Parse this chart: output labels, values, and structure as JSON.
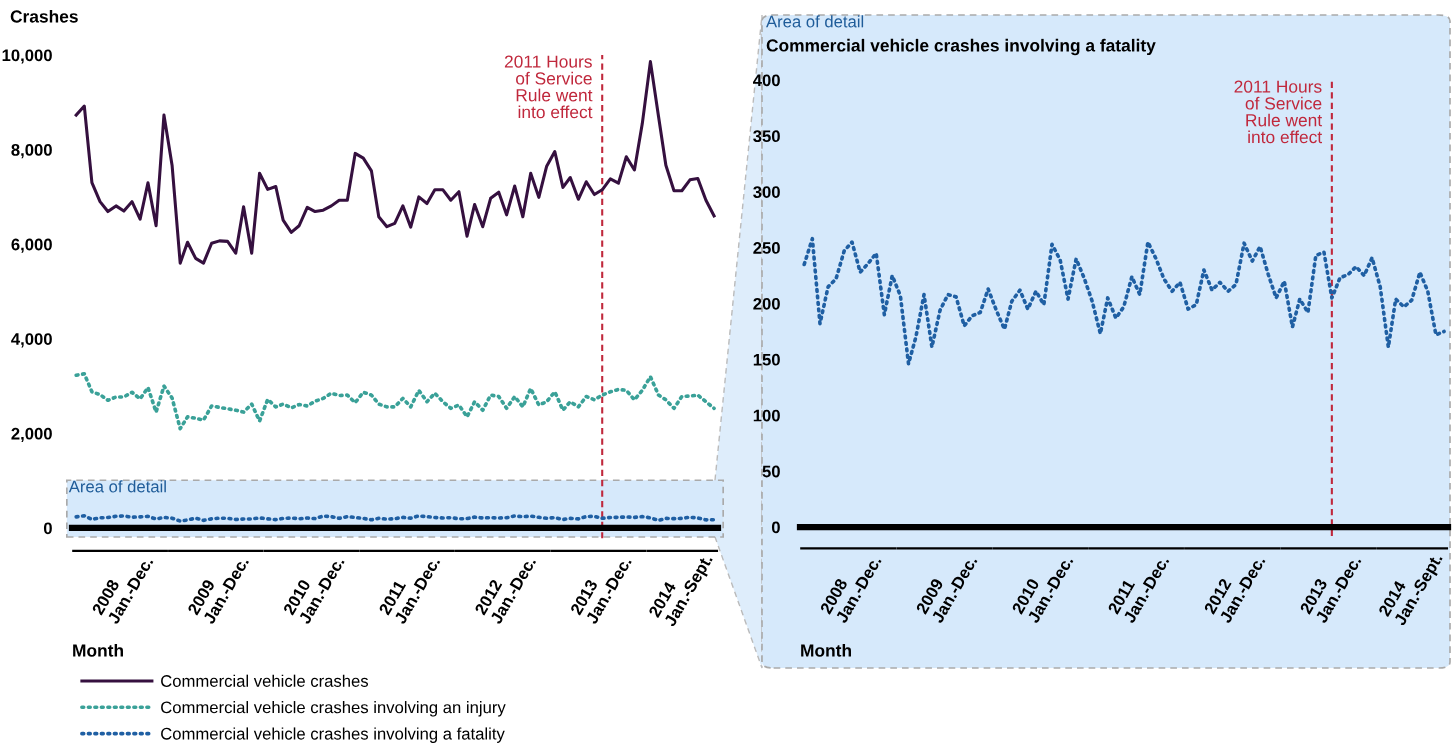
{
  "chart_data": [
    {
      "type": "line",
      "ylabel": "Crashes",
      "xlabel": "Month",
      "x": [
        "2008-01",
        "2008-02",
        "2008-03",
        "2008-04",
        "2008-05",
        "2008-06",
        "2008-07",
        "2008-08",
        "2008-09",
        "2008-10",
        "2008-11",
        "2008-12",
        "2009-01",
        "2009-02",
        "2009-03",
        "2009-04",
        "2009-05",
        "2009-06",
        "2009-07",
        "2009-08",
        "2009-09",
        "2009-10",
        "2009-11",
        "2009-12",
        "2010-01",
        "2010-02",
        "2010-03",
        "2010-04",
        "2010-05",
        "2010-06",
        "2010-07",
        "2010-08",
        "2010-09",
        "2010-10",
        "2010-11",
        "2010-12",
        "2011-01",
        "2011-02",
        "2011-03",
        "2011-04",
        "2011-05",
        "2011-06",
        "2011-07",
        "2011-08",
        "2011-09",
        "2011-10",
        "2011-11",
        "2011-12",
        "2012-01",
        "2012-02",
        "2012-03",
        "2012-04",
        "2012-05",
        "2012-06",
        "2012-07",
        "2012-08",
        "2012-09",
        "2012-10",
        "2012-11",
        "2012-12",
        "2013-01",
        "2013-02",
        "2013-03",
        "2013-04",
        "2013-05",
        "2013-06",
        "2013-07",
        "2013-08",
        "2013-09",
        "2013-10",
        "2013-11",
        "2013-12",
        "2014-01",
        "2014-02",
        "2014-03",
        "2014-04",
        "2014-05",
        "2014-06",
        "2014-07",
        "2014-08",
        "2014-09"
      ],
      "series": [
        {
          "name": "Commercial vehicle crashes",
          "color": "#35103f",
          "line_style": "solid",
          "values": [
            8730,
            8920,
            7300,
            6900,
            6690,
            6810,
            6700,
            6900,
            6530,
            7300,
            6390,
            8730,
            7670,
            5600,
            6040,
            5700,
            5600,
            6020,
            6070,
            6060,
            5810,
            6790,
            5810,
            7500,
            7160,
            7220,
            6510,
            6250,
            6390,
            6780,
            6690,
            6720,
            6810,
            6930,
            6930,
            7920,
            7820,
            7550,
            6580,
            6370,
            6440,
            6810,
            6360,
            7000,
            6860,
            7150,
            7150,
            6930,
            7110,
            6170,
            6840,
            6370,
            6970,
            7100,
            6620,
            7230,
            6580,
            7500,
            6990,
            7650,
            7960,
            7200,
            7410,
            6950,
            7320,
            7050,
            7150,
            7380,
            7290,
            7850,
            7570,
            8550,
            9860,
            8700,
            7670,
            7130,
            7130,
            7360,
            7390,
            6930,
            6600
          ]
        },
        {
          "name": "Commercial vehicle crashes involving an injury",
          "color": "#3aa198",
          "line_style": "dotted",
          "values": [
            3230,
            3260,
            2880,
            2820,
            2700,
            2770,
            2770,
            2870,
            2730,
            2970,
            2450,
            3000,
            2750,
            2100,
            2350,
            2320,
            2280,
            2580,
            2550,
            2520,
            2490,
            2450,
            2620,
            2260,
            2720,
            2560,
            2620,
            2540,
            2610,
            2580,
            2680,
            2740,
            2850,
            2800,
            2810,
            2650,
            2870,
            2810,
            2620,
            2560,
            2560,
            2740,
            2560,
            2910,
            2670,
            2850,
            2670,
            2530,
            2600,
            2350,
            2670,
            2490,
            2810,
            2780,
            2530,
            2780,
            2560,
            2950,
            2600,
            2670,
            2880,
            2490,
            2670,
            2560,
            2780,
            2710,
            2810,
            2880,
            2930,
            2910,
            2710,
            2910,
            3200,
            2810,
            2710,
            2530,
            2780,
            2790,
            2810,
            2670,
            2530
          ]
        },
        {
          "name": "Commercial vehicle crashes involving a fatality",
          "color": "#1f5fa3",
          "line_style": "dotted",
          "values": [
            235,
            258,
            182,
            215,
            222,
            247,
            255,
            228,
            236,
            245,
            190,
            225,
            207,
            146,
            170,
            208,
            161,
            194,
            208,
            206,
            180,
            189,
            192,
            213,
            194,
            177,
            202,
            212,
            195,
            211,
            199,
            253,
            239,
            204,
            240,
            223,
            202,
            173,
            205,
            187,
            197,
            224,
            208,
            255,
            240,
            222,
            211,
            219,
            195,
            199,
            230,
            212,
            219,
            211,
            217,
            254,
            238,
            251,
            226,
            205,
            220,
            179,
            204,
            192,
            243,
            246,
            205,
            223,
            226,
            233,
            225,
            241,
            215,
            161,
            204,
            197,
            203,
            228,
            211,
            172,
            175
          ]
        }
      ],
      "xlim": [
        "2007-12-16",
        "2014-09-16"
      ],
      "xticks": [
        {
          "value": "2008-07",
          "label": "2008\nJan.-Dec."
        },
        {
          "value": "2009-07",
          "label": "2009\nJan.-Dec."
        },
        {
          "value": "2010-07",
          "label": "2010\nJan.-Dec."
        },
        {
          "value": "2011-07",
          "label": "2011\nJan.-Dec."
        },
        {
          "value": "2012-07",
          "label": "2012\nJan.-Dec."
        },
        {
          "value": "2013-07",
          "label": "2013\nJan.-Dec."
        },
        {
          "value": "2014-05",
          "label": "2014\nJan.-Sept."
        }
      ],
      "ylim": [
        -220,
        10000
      ],
      "yticks": [
        0,
        {
          "value": 2000,
          "label": "2,000"
        },
        {
          "value": 4000,
          "label": "4,000"
        },
        {
          "value": 6000,
          "label": "6,000"
        },
        {
          "value": 8000,
          "label": "8,000"
        },
        {
          "value": 10000,
          "label": "10,000"
        }
      ],
      "ref_lines": [
        {
          "axis": "x",
          "value": "2013-07",
          "label": "2011 Hours\nof Service\nRule went\ninto effect",
          "color": "#c0283c",
          "line_style": "dashed"
        }
      ],
      "bands": [
        {
          "axis": "y",
          "from": -190,
          "to": 1010,
          "label": "Area of detail",
          "color": "#d6e9fb"
        }
      ],
      "legend": "bottom",
      "grid": false
    },
    {
      "type": "line",
      "title": "Commercial vehicle crashes involving a fatality",
      "xlabel": "Month",
      "annotations": [
        "Area of detail"
      ],
      "x": [
        "2008-01",
        "2008-02",
        "2008-03",
        "2008-04",
        "2008-05",
        "2008-06",
        "2008-07",
        "2008-08",
        "2008-09",
        "2008-10",
        "2008-11",
        "2008-12",
        "2009-01",
        "2009-02",
        "2009-03",
        "2009-04",
        "2009-05",
        "2009-06",
        "2009-07",
        "2009-08",
        "2009-09",
        "2009-10",
        "2009-11",
        "2009-12",
        "2010-01",
        "2010-02",
        "2010-03",
        "2010-04",
        "2010-05",
        "2010-06",
        "2010-07",
        "2010-08",
        "2010-09",
        "2010-10",
        "2010-11",
        "2010-12",
        "2011-01",
        "2011-02",
        "2011-03",
        "2011-04",
        "2011-05",
        "2011-06",
        "2011-07",
        "2011-08",
        "2011-09",
        "2011-10",
        "2011-11",
        "2011-12",
        "2012-01",
        "2012-02",
        "2012-03",
        "2012-04",
        "2012-05",
        "2012-06",
        "2012-07",
        "2012-08",
        "2012-09",
        "2012-10",
        "2012-11",
        "2012-12",
        "2013-01",
        "2013-02",
        "2013-03",
        "2013-04",
        "2013-05",
        "2013-06",
        "2013-07",
        "2013-08",
        "2013-09",
        "2013-10",
        "2013-11",
        "2013-12",
        "2014-01",
        "2014-02",
        "2014-03",
        "2014-04",
        "2014-05",
        "2014-06",
        "2014-07",
        "2014-08",
        "2014-09"
      ],
      "series": [
        {
          "color": "#1f5fa3",
          "line_style": "dotted",
          "values": [
            235,
            258,
            182,
            215,
            222,
            247,
            255,
            228,
            236,
            245,
            190,
            225,
            207,
            146,
            170,
            208,
            161,
            194,
            208,
            206,
            180,
            189,
            192,
            213,
            194,
            177,
            202,
            212,
            195,
            211,
            199,
            253,
            239,
            204,
            240,
            223,
            202,
            173,
            205,
            187,
            197,
            224,
            208,
            255,
            240,
            222,
            211,
            219,
            195,
            199,
            230,
            212,
            219,
            211,
            217,
            254,
            238,
            251,
            226,
            205,
            220,
            179,
            204,
            192,
            243,
            246,
            205,
            223,
            226,
            233,
            225,
            241,
            215,
            161,
            204,
            197,
            203,
            228,
            211,
            172,
            175
          ]
        }
      ],
      "xlim": [
        "2007-12-16",
        "2014-09-16"
      ],
      "xticks": [
        {
          "value": "2008-07",
          "label": "2008\nJan.-Dec."
        },
        {
          "value": "2009-07",
          "label": "2009\nJan.-Dec."
        },
        {
          "value": "2010-07",
          "label": "2010\nJan.-Dec."
        },
        {
          "value": "2011-07",
          "label": "2011\nJan.-Dec."
        },
        {
          "value": "2012-07",
          "label": "2012\nJan.-Dec."
        },
        {
          "value": "2013-07",
          "label": "2013\nJan.-Dec."
        },
        {
          "value": "2014-05",
          "label": "2014\nJan.-Sept."
        }
      ],
      "ylim": [
        -8,
        400
      ],
      "yticks": [
        0,
        50,
        100,
        150,
        200,
        250,
        300,
        350,
        400
      ],
      "ref_lines": [
        {
          "axis": "x",
          "value": "2013-07",
          "label": "2011 Hours\nof Service\nRule went\ninto effect",
          "color": "#c0283c",
          "line_style": "dashed"
        }
      ],
      "grid": false
    }
  ]
}
